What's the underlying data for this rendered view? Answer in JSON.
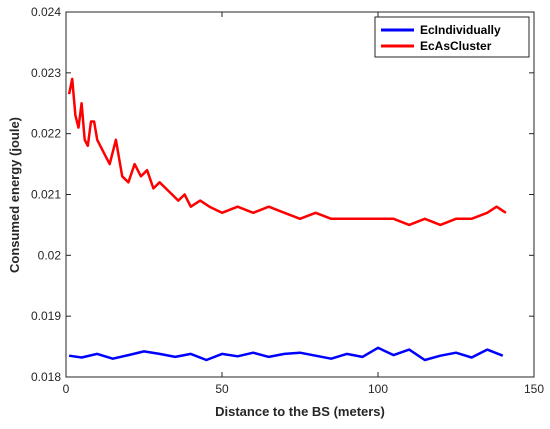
{
  "chart_data": {
    "type": "line",
    "title": "",
    "xlabel": "Distance to the BS (meters)",
    "ylabel": "Consumed energy (joule)",
    "xlim": [
      0,
      150
    ],
    "ylim": [
      0.018,
      0.024
    ],
    "xticks": [
      0,
      50,
      100,
      150
    ],
    "yticks": [
      0.018,
      0.019,
      0.02,
      0.021,
      0.022,
      0.023,
      0.024
    ],
    "xtick_labels": [
      "0",
      "50",
      "100",
      "150"
    ],
    "ytick_labels": [
      "0.018",
      "0.019",
      "0.02",
      "0.021",
      "0.022",
      "0.023",
      "0.024"
    ],
    "grid": false,
    "legend_position": "top-right",
    "series": [
      {
        "name": "EcIndividually",
        "color": "#0000ff",
        "x": [
          1,
          5,
          10,
          15,
          20,
          25,
          30,
          35,
          40,
          45,
          50,
          55,
          60,
          65,
          70,
          75,
          80,
          85,
          90,
          95,
          100,
          105,
          110,
          115,
          120,
          125,
          130,
          135,
          140
        ],
        "y": [
          0.01835,
          0.01832,
          0.01838,
          0.0183,
          0.01836,
          0.01842,
          0.01838,
          0.01833,
          0.01838,
          0.01828,
          0.01838,
          0.01834,
          0.0184,
          0.01833,
          0.01838,
          0.0184,
          0.01835,
          0.0183,
          0.01838,
          0.01833,
          0.01848,
          0.01836,
          0.01845,
          0.01828,
          0.01835,
          0.0184,
          0.01832,
          0.01845,
          0.01835
        ]
      },
      {
        "name": "EcAsCluster",
        "color": "#ff0000",
        "x": [
          1,
          2,
          3,
          4,
          5,
          6,
          7,
          8,
          9,
          10,
          12,
          14,
          16,
          18,
          20,
          22,
          24,
          26,
          28,
          30,
          32,
          34,
          36,
          38,
          40,
          43,
          46,
          50,
          55,
          60,
          65,
          70,
          75,
          80,
          85,
          90,
          95,
          100,
          105,
          110,
          115,
          120,
          125,
          130,
          135,
          138,
          141
        ],
        "y": [
          0.02265,
          0.0229,
          0.0223,
          0.0221,
          0.0225,
          0.0219,
          0.0218,
          0.0222,
          0.0222,
          0.0219,
          0.0217,
          0.0215,
          0.0219,
          0.0213,
          0.0212,
          0.0215,
          0.0213,
          0.0214,
          0.0211,
          0.0212,
          0.0211,
          0.021,
          0.0209,
          0.021,
          0.0208,
          0.0209,
          0.0208,
          0.0207,
          0.0208,
          0.0207,
          0.0208,
          0.0207,
          0.0206,
          0.0207,
          0.0206,
          0.0206,
          0.0206,
          0.0206,
          0.0206,
          0.0205,
          0.0206,
          0.0205,
          0.0206,
          0.0206,
          0.0207,
          0.0208,
          0.0207
        ]
      }
    ]
  }
}
